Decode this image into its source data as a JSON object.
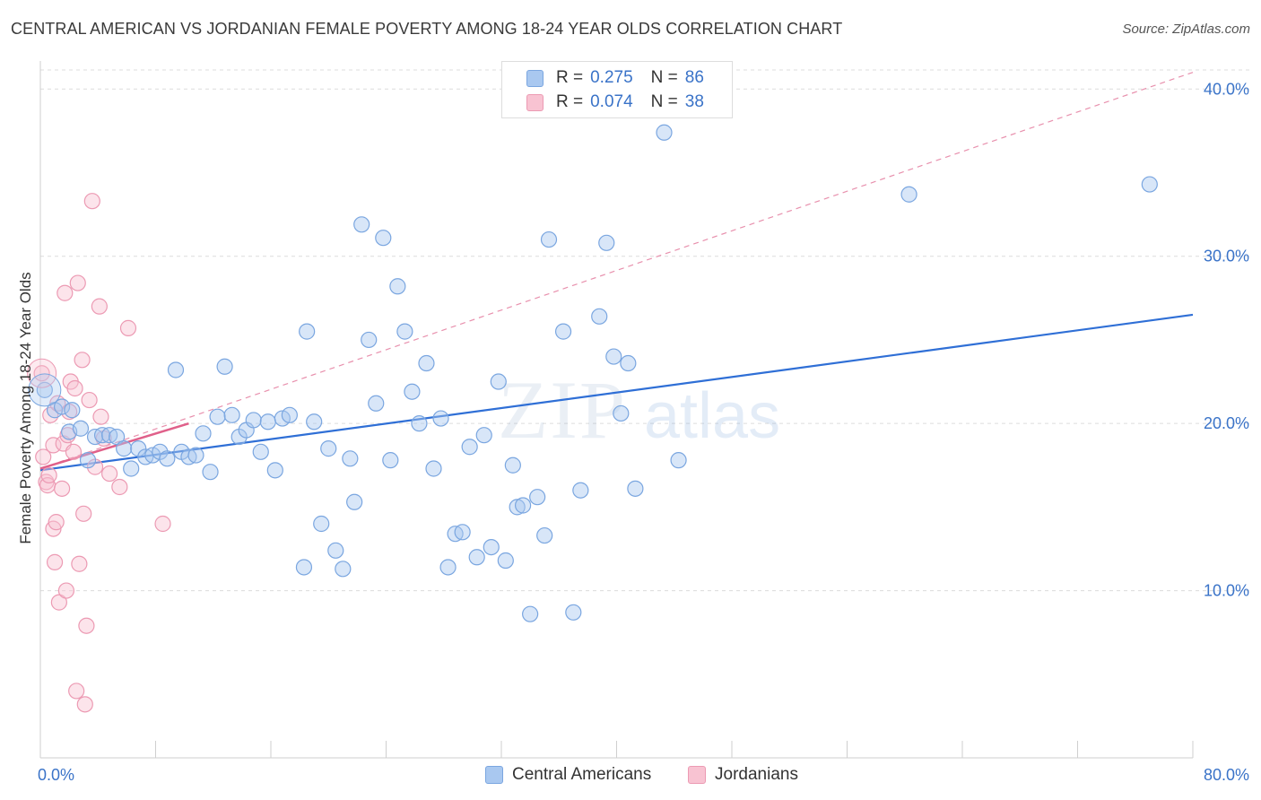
{
  "title": "CENTRAL AMERICAN VS JORDANIAN FEMALE POVERTY AMONG 18-24 YEAR OLDS CORRELATION CHART",
  "source": "Source: ZipAtlas.com",
  "watermark": {
    "zip": "ZIP",
    "atlas": "atlas"
  },
  "legend": {
    "rows": [
      {
        "r_label": "R =",
        "r_value": "0.275",
        "n_label": "N =",
        "n_value": "86",
        "color": "#a9c8f0",
        "border": "#7aa6e0"
      },
      {
        "r_label": "R =",
        "r_value": "0.074",
        "n_label": "N =",
        "n_value": "38",
        "color": "#f8c3d2",
        "border": "#ec9ab3"
      }
    ]
  },
  "bottom_legend": [
    {
      "label": "Central Americans",
      "color": "#a9c8f0",
      "border": "#7aa6e0"
    },
    {
      "label": "Jordanians",
      "color": "#f8c3d2",
      "border": "#ec9ab3"
    }
  ],
  "chart_data": {
    "type": "scatter",
    "title": "CENTRAL AMERICAN VS JORDANIAN FEMALE POVERTY AMONG 18-24 YEAR OLDS CORRELATION CHART",
    "xlabel": "",
    "ylabel": "Female Poverty Among 18-24 Year Olds",
    "xlim": [
      0,
      80
    ],
    "ylim": [
      0,
      42
    ],
    "x_tick_labels": [
      "0.0%",
      "80.0%"
    ],
    "y_ticks": [
      10,
      20,
      30,
      40
    ],
    "y_tick_labels": [
      "10.0%",
      "20.0%",
      "30.0%",
      "40.0%"
    ],
    "grid": true,
    "legend_position": "top-center",
    "series": [
      {
        "name": "Central Americans",
        "color": "#a9c8f0",
        "stroke": "#7aa6e0",
        "trend": {
          "x": [
            0,
            80
          ],
          "y": [
            17.2,
            26.5
          ],
          "color": "#2f6fd6",
          "style": "solid"
        },
        "points": [
          [
            0.3,
            22.0
          ],
          [
            1.0,
            20.8
          ],
          [
            1.5,
            21.0
          ],
          [
            2.2,
            20.8
          ],
          [
            2.0,
            19.5
          ],
          [
            2.8,
            19.7
          ],
          [
            3.3,
            17.8
          ],
          [
            3.8,
            19.2
          ],
          [
            4.3,
            19.3
          ],
          [
            4.8,
            19.3
          ],
          [
            5.3,
            19.2
          ],
          [
            5.8,
            18.5
          ],
          [
            6.3,
            17.3
          ],
          [
            6.8,
            18.5
          ],
          [
            7.3,
            18.0
          ],
          [
            7.8,
            18.1
          ],
          [
            8.3,
            18.3
          ],
          [
            8.8,
            17.9
          ],
          [
            9.4,
            23.2
          ],
          [
            9.8,
            18.3
          ],
          [
            10.3,
            18.0
          ],
          [
            10.8,
            18.1
          ],
          [
            11.3,
            19.4
          ],
          [
            11.8,
            17.1
          ],
          [
            12.3,
            20.4
          ],
          [
            12.8,
            23.4
          ],
          [
            13.3,
            20.5
          ],
          [
            13.8,
            19.2
          ],
          [
            14.3,
            19.6
          ],
          [
            14.8,
            20.2
          ],
          [
            15.3,
            18.3
          ],
          [
            15.8,
            20.1
          ],
          [
            16.3,
            17.2
          ],
          [
            16.8,
            20.3
          ],
          [
            17.3,
            20.5
          ],
          [
            18.3,
            11.4
          ],
          [
            18.5,
            25.5
          ],
          [
            19.0,
            20.1
          ],
          [
            19.5,
            14.0
          ],
          [
            20.0,
            18.5
          ],
          [
            20.5,
            12.4
          ],
          [
            21.0,
            11.3
          ],
          [
            21.5,
            17.9
          ],
          [
            21.8,
            15.3
          ],
          [
            22.3,
            31.9
          ],
          [
            22.8,
            25.0
          ],
          [
            23.3,
            21.2
          ],
          [
            23.8,
            31.1
          ],
          [
            24.3,
            17.8
          ],
          [
            24.8,
            28.2
          ],
          [
            25.3,
            25.5
          ],
          [
            25.8,
            21.9
          ],
          [
            26.3,
            20.0
          ],
          [
            26.8,
            23.6
          ],
          [
            27.3,
            17.3
          ],
          [
            27.8,
            20.3
          ],
          [
            28.3,
            11.4
          ],
          [
            28.8,
            13.4
          ],
          [
            29.3,
            13.5
          ],
          [
            29.8,
            18.6
          ],
          [
            30.3,
            12.0
          ],
          [
            30.8,
            19.3
          ],
          [
            31.3,
            12.6
          ],
          [
            31.8,
            22.5
          ],
          [
            32.3,
            11.8
          ],
          [
            32.8,
            17.5
          ],
          [
            33.1,
            15.0
          ],
          [
            33.5,
            15.1
          ],
          [
            34.0,
            8.6
          ],
          [
            34.5,
            15.6
          ],
          [
            35.0,
            13.3
          ],
          [
            35.3,
            31.0
          ],
          [
            36.3,
            25.5
          ],
          [
            37.0,
            8.7
          ],
          [
            37.5,
            16.0
          ],
          [
            38.8,
            26.4
          ],
          [
            39.3,
            30.8
          ],
          [
            39.8,
            24.0
          ],
          [
            40.3,
            20.6
          ],
          [
            40.8,
            23.6
          ],
          [
            41.3,
            16.1
          ],
          [
            43.3,
            37.4
          ],
          [
            44.3,
            17.8
          ],
          [
            60.3,
            33.7
          ],
          [
            77.0,
            34.3
          ],
          [
            42.8,
            39.8
          ]
        ]
      },
      {
        "name": "Jordanians",
        "color": "#f8c3d2",
        "stroke": "#ec9ab3",
        "trend": {
          "x": [
            0,
            10.3
          ],
          "y": [
            17.3,
            20.0
          ],
          "color": "#e0608a",
          "style": "solid",
          "ext_x": [
            0,
            80
          ],
          "ext_y": [
            17.3,
            41.0
          ],
          "ext_style": "dashed"
        },
        "points": [
          [
            0.1,
            23.0
          ],
          [
            0.2,
            18.0
          ],
          [
            0.4,
            16.5
          ],
          [
            0.5,
            16.3
          ],
          [
            0.6,
            16.9
          ],
          [
            0.7,
            20.5
          ],
          [
            0.9,
            18.7
          ],
          [
            0.9,
            13.7
          ],
          [
            1.0,
            11.7
          ],
          [
            1.1,
            14.1
          ],
          [
            1.2,
            21.2
          ],
          [
            1.3,
            9.3
          ],
          [
            1.5,
            16.1
          ],
          [
            1.6,
            18.8
          ],
          [
            1.7,
            27.8
          ],
          [
            1.8,
            10.0
          ],
          [
            1.9,
            19.3
          ],
          [
            2.0,
            20.7
          ],
          [
            2.1,
            22.5
          ],
          [
            2.3,
            18.3
          ],
          [
            2.4,
            22.1
          ],
          [
            2.5,
            4.0
          ],
          [
            2.6,
            28.4
          ],
          [
            2.7,
            11.6
          ],
          [
            2.9,
            23.8
          ],
          [
            3.0,
            14.6
          ],
          [
            3.1,
            3.2
          ],
          [
            3.2,
            7.9
          ],
          [
            3.4,
            21.4
          ],
          [
            3.6,
            33.3
          ],
          [
            3.8,
            17.4
          ],
          [
            4.1,
            27.0
          ],
          [
            4.2,
            20.4
          ],
          [
            4.4,
            19.1
          ],
          [
            4.8,
            17.0
          ],
          [
            5.5,
            16.2
          ],
          [
            6.1,
            25.7
          ],
          [
            8.5,
            14.0
          ]
        ]
      }
    ]
  }
}
